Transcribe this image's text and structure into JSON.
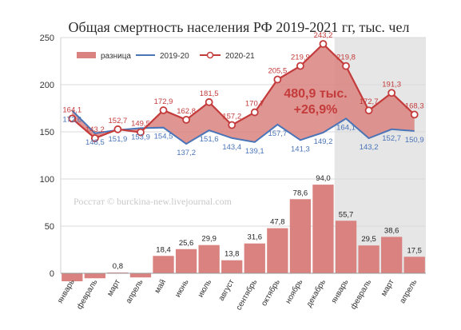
{
  "chart_data": {
    "type": "line",
    "title": "Общая смертность населения РФ 2019-2021 гг, тыс. чел",
    "categories": [
      "январь",
      "февраль",
      "март",
      "апрель",
      "май",
      "июнь",
      "июль",
      "август",
      "сентябрь",
      "октябрь",
      "ноябрь",
      "декабрь",
      "январь",
      "февраль",
      "март",
      "апрель"
    ],
    "ylim": [
      0,
      250
    ],
    "yticks": [
      0,
      50,
      100,
      150,
      200,
      250
    ],
    "grid": true,
    "legend_position": "top-left",
    "series": [
      {
        "name": "2019-20",
        "type": "line",
        "color": "#4a74b8",
        "values": [
          172.6,
          148.5,
          151.9,
          153.9,
          154.5,
          137.2,
          151.6,
          143.4,
          139.1,
          157.7,
          141.3,
          149.2,
          164.1,
          143.2,
          152.7,
          150.9
        ],
        "labels": [
          "172,6",
          "148,5",
          "151,9",
          "153,9",
          "154,5",
          "137,2",
          "151,6",
          "143,4",
          "139,1",
          "157,7",
          "141,3",
          "149,2",
          "164,1",
          "143,2",
          "152,7",
          "150,9"
        ]
      },
      {
        "name": "2020-21",
        "type": "line",
        "color": "#c43b3b",
        "values": [
          164.1,
          143.2,
          152.7,
          149.5,
          172.9,
          162.8,
          181.5,
          157.2,
          170.7,
          205.5,
          219.9,
          243.2,
          219.8,
          172.7,
          191.3,
          168.3
        ],
        "labels": [
          "164,1",
          "143,2",
          "152,7",
          "149,5",
          "172,9",
          "162,8",
          "181,5",
          "157,2",
          "170,7",
          "205,5",
          "219,9",
          "243,2",
          "219,8",
          "172,7",
          "191,3",
          "168,3"
        ]
      },
      {
        "name": "разница",
        "type": "bar",
        "color": "#d9827f",
        "values": [
          -8.5,
          -5.3,
          0.8,
          -4.4,
          18.4,
          25.6,
          29.9,
          13.8,
          31.6,
          47.8,
          78.6,
          94.0,
          55.7,
          29.5,
          38.6,
          17.5
        ],
        "labels": [
          "",
          "",
          "0,8",
          "",
          "18,4",
          "25,6",
          "29,9",
          "13,8",
          "31,6",
          "47,8",
          "78,6",
          "94,0",
          "55,7",
          "29,5",
          "38,6",
          "17,5"
        ]
      }
    ],
    "annotation": {
      "line1": "480,9 тыс.",
      "line2": "+26,9%",
      "color": "#c43b3b"
    },
    "highlight_region": {
      "from_index": 12,
      "to_index": 15,
      "color": "#e6e6e6"
    },
    "watermark": "Росстат © burckina-new.livejournal.com",
    "colors": {
      "area_fill": "#d9827f",
      "grid": "#d9d9d9",
      "text": "#333333"
    }
  }
}
